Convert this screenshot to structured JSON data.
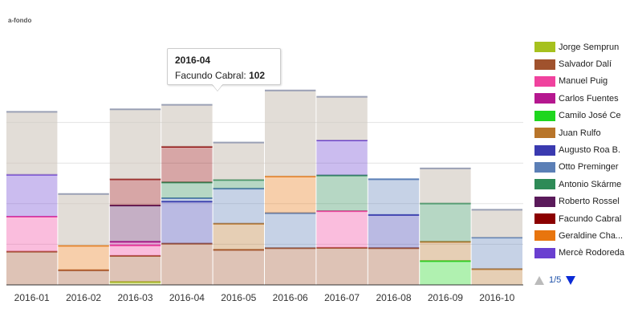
{
  "title": "a-fondo",
  "chart_data": {
    "type": "bar",
    "stacked": true,
    "categories": [
      "2016-01",
      "2016-02",
      "2016-03",
      "2016-04",
      "2016-05",
      "2016-06",
      "2016-07",
      "2016-08",
      "2016-09",
      "2016-10"
    ],
    "ylim": [
      0,
      700
    ],
    "grid": true,
    "legend_position": "right",
    "series": [
      {
        "name": "Jorge Semprun",
        "color": "#a6c11e",
        "values": [
          0,
          0,
          8,
          0,
          0,
          0,
          0,
          0,
          0,
          0
        ]
      },
      {
        "name": "Salvador Dalí",
        "color": "#a0522d",
        "values": [
          95,
          42,
          75,
          118,
          100,
          105,
          106,
          105,
          0,
          0
        ]
      },
      {
        "name": "Manuel Puig",
        "color": "#f0429e",
        "values": [
          100,
          0,
          30,
          0,
          0,
          0,
          105,
          0,
          0,
          0
        ]
      },
      {
        "name": "Carlos Fuentes",
        "color": "#b5178f",
        "values": [
          0,
          0,
          10,
          0,
          0,
          0,
          0,
          0,
          0,
          0
        ]
      },
      {
        "name": "Camilo José Cela",
        "color": "#1ed61e",
        "values": [
          0,
          0,
          0,
          0,
          0,
          0,
          0,
          0,
          68,
          0
        ]
      },
      {
        "name": "Juan Rulfo",
        "color": "#b8752a",
        "values": [
          0,
          0,
          0,
          0,
          75,
          0,
          0,
          0,
          55,
          45
        ]
      },
      {
        "name": "Augusto Roa Bastos",
        "color": "#3a3ab0",
        "values": [
          0,
          0,
          0,
          120,
          0,
          0,
          0,
          95,
          0,
          0
        ]
      },
      {
        "name": "Otto Preminger",
        "color": "#5b7fb6",
        "values": [
          0,
          0,
          0,
          10,
          100,
          100,
          0,
          102,
          0,
          90
        ]
      },
      {
        "name": "Antonio Skármeta",
        "color": "#2e8b57",
        "values": [
          0,
          0,
          0,
          45,
          25,
          0,
          102,
          0,
          110,
          0
        ]
      },
      {
        "name": "Roberto Rossellini",
        "color": "#5a1a5a",
        "values": [
          0,
          0,
          104,
          0,
          0,
          0,
          0,
          0,
          0,
          0
        ]
      },
      {
        "name": "Facundo Cabral",
        "color": "#8b0000",
        "values": [
          0,
          0,
          75,
          102,
          0,
          0,
          0,
          0,
          0,
          0
        ]
      },
      {
        "name": "Geraldine Chaplin",
        "color": "#e8750e",
        "values": [
          0,
          70,
          0,
          0,
          0,
          105,
          0,
          0,
          0,
          0
        ]
      },
      {
        "name": "Mercè Rodoreda",
        "color": "#6a3fd0",
        "values": [
          120,
          0,
          0,
          0,
          0,
          0,
          100,
          0,
          0,
          0
        ]
      }
    ],
    "hidden_series_color": "#cfc6bd",
    "hidden_values": [
      180,
      148,
      200,
      120,
      107,
      246,
      125,
      0,
      100,
      80
    ]
  },
  "legend": {
    "items": [
      {
        "label": "Jorge Semprun",
        "color": "#a6c11e"
      },
      {
        "label": "Salvador Dalí",
        "color": "#a0522d"
      },
      {
        "label": "Manuel Puig",
        "color": "#f0429e"
      },
      {
        "label": "Carlos Fuentes",
        "color": "#b5178f"
      },
      {
        "label": "Camilo José Ce",
        "color": "#1ed61e"
      },
      {
        "label": "Juan Rulfo",
        "color": "#b8752a"
      },
      {
        "label": "Augusto Roa B.",
        "color": "#3a3ab0"
      },
      {
        "label": "Otto Preminger",
        "color": "#5b7fb6"
      },
      {
        "label": "Antonio Skárme",
        "color": "#2e8b57"
      },
      {
        "label": "Roberto Rossel",
        "color": "#5a1a5a"
      },
      {
        "label": "Facundo Cabral",
        "color": "#8b0000"
      },
      {
        "label": "Geraldine Cha...",
        "color": "#e8750e"
      },
      {
        "label": "Mercè Rodoreda",
        "color": "#6a3fd0"
      }
    ],
    "pager": "1/5"
  },
  "tooltip": {
    "title": "2016-04",
    "series": "Facundo Cabral",
    "value": "102"
  }
}
